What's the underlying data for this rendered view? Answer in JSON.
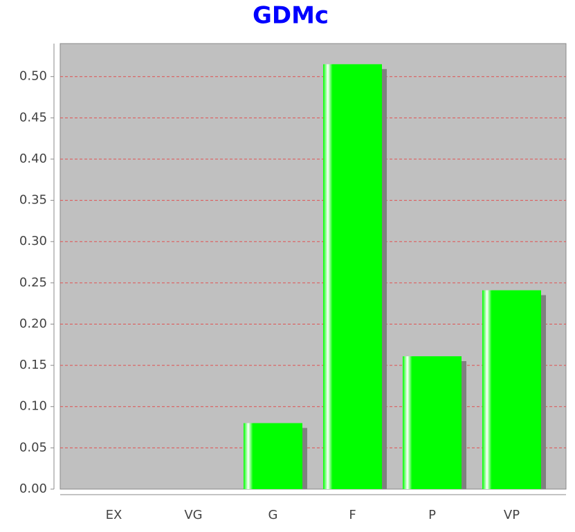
{
  "chart_data": {
    "type": "bar",
    "title": "GDMc",
    "categories": [
      "EX",
      "VG",
      "G",
      "F",
      "P",
      "VP"
    ],
    "values": [
      0,
      0,
      0.08,
      0.515,
      0.161,
      0.241
    ],
    "color": "#00ff00",
    "ylim": [
      0,
      0.54
    ],
    "yticks": [
      {
        "value": 0,
        "label": "0.00"
      },
      {
        "value": 0.05,
        "label": "0.05"
      },
      {
        "value": 0.1,
        "label": "0.10"
      },
      {
        "value": 0.15,
        "label": "0.15"
      },
      {
        "value": 0.2,
        "label": "0.20"
      },
      {
        "value": 0.25,
        "label": "0.25"
      },
      {
        "value": 0.3,
        "label": "0.30"
      },
      {
        "value": 0.35,
        "label": "0.35"
      },
      {
        "value": 0.4,
        "label": "0.40"
      },
      {
        "value": 0.45,
        "label": "0.45"
      },
      {
        "value": 0.5,
        "label": "0.50"
      }
    ],
    "grid": true
  }
}
